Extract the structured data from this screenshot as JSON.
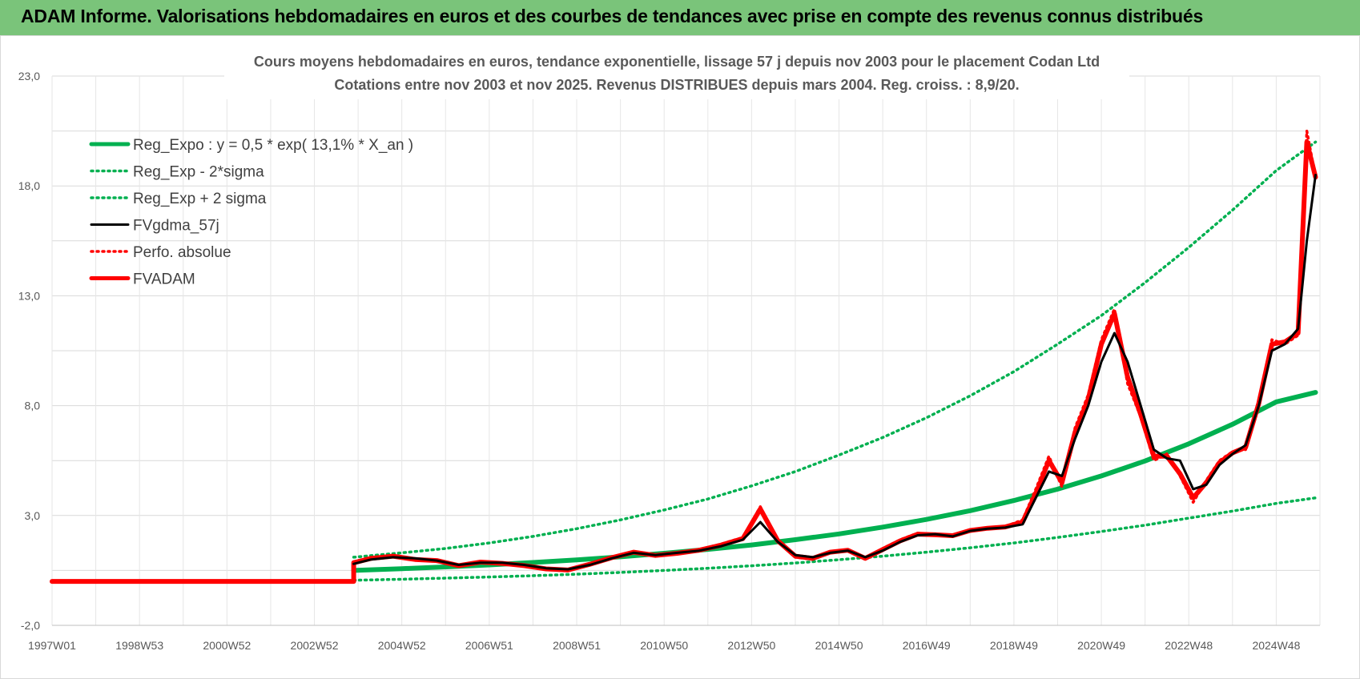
{
  "header": {
    "title": "ADAM Informe. Valorisations hebdomadaires en euros et des courbes de tendances avec prise en compte des revenus connus distribués"
  },
  "chart_data": {
    "type": "line",
    "title": "Cours moyens hebdomadaires en euros, tendance exponentielle, lissage 57 j depuis nov 2003 pour le placement Codan Ltd",
    "subtitle": "Cotations entre nov 2003 et nov 2025. Revenus DISTRIBUES depuis mars 2004. Reg. croiss. : 8,9/20.",
    "ylim": [
      -2,
      23
    ],
    "yticks": [
      "-2,0",
      "3,0",
      "8,0",
      "13,0",
      "18,0",
      "23,0"
    ],
    "xlim": [
      1997.0,
      2026.0
    ],
    "xticks": [
      {
        "label": "1997W01",
        "x": 1997.0
      },
      {
        "label": "1998W53",
        "x": 1999.0
      },
      {
        "label": "2000W52",
        "x": 2001.0
      },
      {
        "label": "2002W52",
        "x": 2003.0
      },
      {
        "label": "2004W52",
        "x": 2005.0
      },
      {
        "label": "2006W51",
        "x": 2007.0
      },
      {
        "label": "2008W51",
        "x": 2009.0
      },
      {
        "label": "2010W50",
        "x": 2011.0
      },
      {
        "label": "2012W50",
        "x": 2013.0
      },
      {
        "label": "2014W50",
        "x": 2015.0
      },
      {
        "label": "2016W49",
        "x": 2017.0
      },
      {
        "label": "2018W49",
        "x": 2019.0
      },
      {
        "label": "2020W49",
        "x": 2021.0
      },
      {
        "label": "2022W48",
        "x": 2023.0
      },
      {
        "label": "2024W48",
        "x": 2025.0
      }
    ],
    "grid": true,
    "legend_position": "top-left",
    "series": [
      {
        "name": "Reg_Expo : y = 0,5 * exp( 13,1% *  X_an )",
        "color": "#00b050",
        "style": "solid-thick",
        "x": [
          2003.9,
          2005,
          2006,
          2007,
          2008,
          2009,
          2010,
          2011,
          2012,
          2013,
          2014,
          2015,
          2016,
          2017,
          2018,
          2019,
          2020,
          2021,
          2022,
          2023,
          2024,
          2025,
          2025.9
        ],
        "y": [
          0.5,
          0.58,
          0.66,
          0.75,
          0.86,
          0.98,
          1.12,
          1.28,
          1.46,
          1.66,
          1.9,
          2.16,
          2.47,
          2.82,
          3.22,
          3.68,
          4.2,
          4.8,
          5.48,
          6.26,
          7.15,
          8.17,
          8.6
        ]
      },
      {
        "name": "Reg_Exp - 2*sigma",
        "color": "#00b050",
        "style": "dotted",
        "x": [
          2003.9,
          2005,
          2006,
          2007,
          2008,
          2009,
          2010,
          2011,
          2012,
          2013,
          2014,
          2015,
          2016,
          2017,
          2018,
          2019,
          2020,
          2021,
          2022,
          2023,
          2024,
          2025,
          2025.9
        ],
        "y": [
          0.05,
          0.1,
          0.15,
          0.2,
          0.26,
          0.33,
          0.41,
          0.5,
          0.6,
          0.71,
          0.84,
          0.99,
          1.15,
          1.33,
          1.53,
          1.75,
          2.0,
          2.27,
          2.56,
          2.88,
          3.2,
          3.55,
          3.8
        ]
      },
      {
        "name": "Reg_Exp + 2 sigma",
        "color": "#00b050",
        "style": "dotted",
        "x": [
          2003.9,
          2005,
          2006,
          2007,
          2008,
          2009,
          2010,
          2011,
          2012,
          2013,
          2014,
          2015,
          2016,
          2017,
          2018,
          2019,
          2020,
          2021,
          2022,
          2023,
          2024,
          2025,
          2025.9
        ],
        "y": [
          1.1,
          1.3,
          1.5,
          1.75,
          2.05,
          2.4,
          2.8,
          3.25,
          3.75,
          4.35,
          5.0,
          5.75,
          6.55,
          7.45,
          8.45,
          9.55,
          10.8,
          12.1,
          13.6,
          15.2,
          16.9,
          18.7,
          20.0
        ]
      },
      {
        "name": "FVgdma_57j",
        "color": "#000000",
        "style": "solid",
        "x": [
          2003.9,
          2004.3,
          2004.8,
          2005.3,
          2005.8,
          2006.3,
          2006.8,
          2007.3,
          2007.8,
          2008.3,
          2008.8,
          2009.3,
          2009.8,
          2010.3,
          2010.8,
          2011.3,
          2011.8,
          2012.3,
          2012.8,
          2013.2,
          2013.6,
          2014.0,
          2014.4,
          2014.8,
          2015.2,
          2015.6,
          2016.0,
          2016.4,
          2016.8,
          2017.2,
          2017.6,
          2018.0,
          2018.4,
          2018.8,
          2019.2,
          2019.5,
          2019.8,
          2020.1,
          2020.4,
          2020.7,
          2021.0,
          2021.3,
          2021.6,
          2021.9,
          2022.2,
          2022.5,
          2022.8,
          2023.1,
          2023.4,
          2023.7,
          2024.0,
          2024.3,
          2024.6,
          2024.9,
          2025.2,
          2025.5,
          2025.7,
          2025.9
        ],
        "y": [
          0.8,
          1.0,
          1.1,
          1.05,
          0.95,
          0.75,
          0.85,
          0.85,
          0.75,
          0.6,
          0.55,
          0.75,
          1.05,
          1.3,
          1.2,
          1.3,
          1.4,
          1.6,
          1.9,
          2.7,
          1.8,
          1.2,
          1.1,
          1.3,
          1.4,
          1.1,
          1.4,
          1.8,
          2.1,
          2.15,
          2.05,
          2.3,
          2.4,
          2.45,
          2.6,
          3.8,
          5.0,
          4.8,
          6.5,
          8.0,
          10.0,
          11.3,
          10.0,
          8.0,
          6.0,
          5.6,
          5.5,
          4.2,
          4.4,
          5.3,
          5.8,
          6.2,
          8.0,
          10.5,
          10.8,
          11.5,
          15.5,
          18.5
        ]
      },
      {
        "name": "Perfo. absolue",
        "color": "#ff0000",
        "style": "dotted",
        "x": [
          2003.9,
          2004.3,
          2004.8,
          2005.3,
          2005.8,
          2006.3,
          2006.8,
          2007.3,
          2007.8,
          2008.3,
          2008.8,
          2009.3,
          2009.8,
          2010.3,
          2010.8,
          2011.3,
          2011.8,
          2012.3,
          2012.8,
          2013.2,
          2013.6,
          2014.0,
          2014.4,
          2014.8,
          2015.2,
          2015.6,
          2016.0,
          2016.4,
          2016.8,
          2017.2,
          2017.6,
          2018.0,
          2018.4,
          2018.8,
          2019.2,
          2019.5,
          2019.8,
          2020.1,
          2020.4,
          2020.7,
          2021.0,
          2021.3,
          2021.6,
          2021.9,
          2022.2,
          2022.5,
          2022.8,
          2023.1,
          2023.4,
          2023.7,
          2024.0,
          2024.3,
          2024.6,
          2024.9,
          2025.2,
          2025.5,
          2025.7,
          2025.9
        ],
        "y": [
          0.9,
          1.1,
          1.15,
          1.0,
          0.9,
          0.7,
          0.9,
          0.8,
          0.7,
          0.55,
          0.5,
          0.8,
          1.1,
          1.35,
          1.15,
          1.3,
          1.45,
          1.7,
          2.0,
          3.4,
          1.8,
          1.1,
          1.0,
          1.35,
          1.45,
          1.0,
          1.5,
          1.9,
          2.2,
          2.1,
          2.1,
          2.35,
          2.4,
          2.5,
          2.8,
          4.2,
          5.7,
          4.3,
          7.0,
          8.5,
          11.0,
          12.4,
          9.0,
          7.5,
          5.5,
          5.8,
          4.8,
          3.6,
          4.6,
          5.5,
          5.9,
          6.0,
          8.2,
          11.0,
          10.8,
          11.2,
          20.5,
          18.4
        ]
      },
      {
        "name": "FVADAM",
        "color": "#ff0000",
        "style": "solid-thick",
        "x": [
          1997.0,
          2003.9,
          2003.9,
          2004.3,
          2004.8,
          2005.3,
          2005.8,
          2006.3,
          2006.8,
          2007.3,
          2007.8,
          2008.3,
          2008.8,
          2009.3,
          2009.8,
          2010.3,
          2010.8,
          2011.3,
          2011.8,
          2012.3,
          2012.8,
          2013.2,
          2013.6,
          2014.0,
          2014.4,
          2014.8,
          2015.2,
          2015.6,
          2016.0,
          2016.4,
          2016.8,
          2017.2,
          2017.6,
          2018.0,
          2018.4,
          2018.8,
          2019.2,
          2019.5,
          2019.8,
          2020.1,
          2020.4,
          2020.7,
          2021.0,
          2021.3,
          2021.6,
          2021.9,
          2022.2,
          2022.5,
          2022.8,
          2023.1,
          2023.4,
          2023.7,
          2024.0,
          2024.3,
          2024.6,
          2024.9,
          2025.2,
          2025.5,
          2025.7,
          2025.9
        ],
        "y": [
          0.0,
          0.0,
          0.85,
          1.05,
          1.15,
          1.0,
          0.95,
          0.72,
          0.88,
          0.82,
          0.72,
          0.57,
          0.52,
          0.78,
          1.08,
          1.33,
          1.18,
          1.28,
          1.42,
          1.65,
          1.95,
          3.3,
          1.85,
          1.15,
          1.05,
          1.33,
          1.42,
          1.05,
          1.45,
          1.85,
          2.15,
          2.12,
          2.08,
          2.32,
          2.42,
          2.48,
          2.7,
          4.0,
          5.5,
          4.5,
          6.8,
          8.3,
          10.8,
          12.2,
          9.3,
          7.6,
          5.7,
          5.7,
          4.9,
          3.8,
          4.5,
          5.4,
          5.85,
          6.1,
          8.1,
          10.8,
          10.9,
          11.3,
          20.0,
          18.4
        ]
      }
    ]
  }
}
